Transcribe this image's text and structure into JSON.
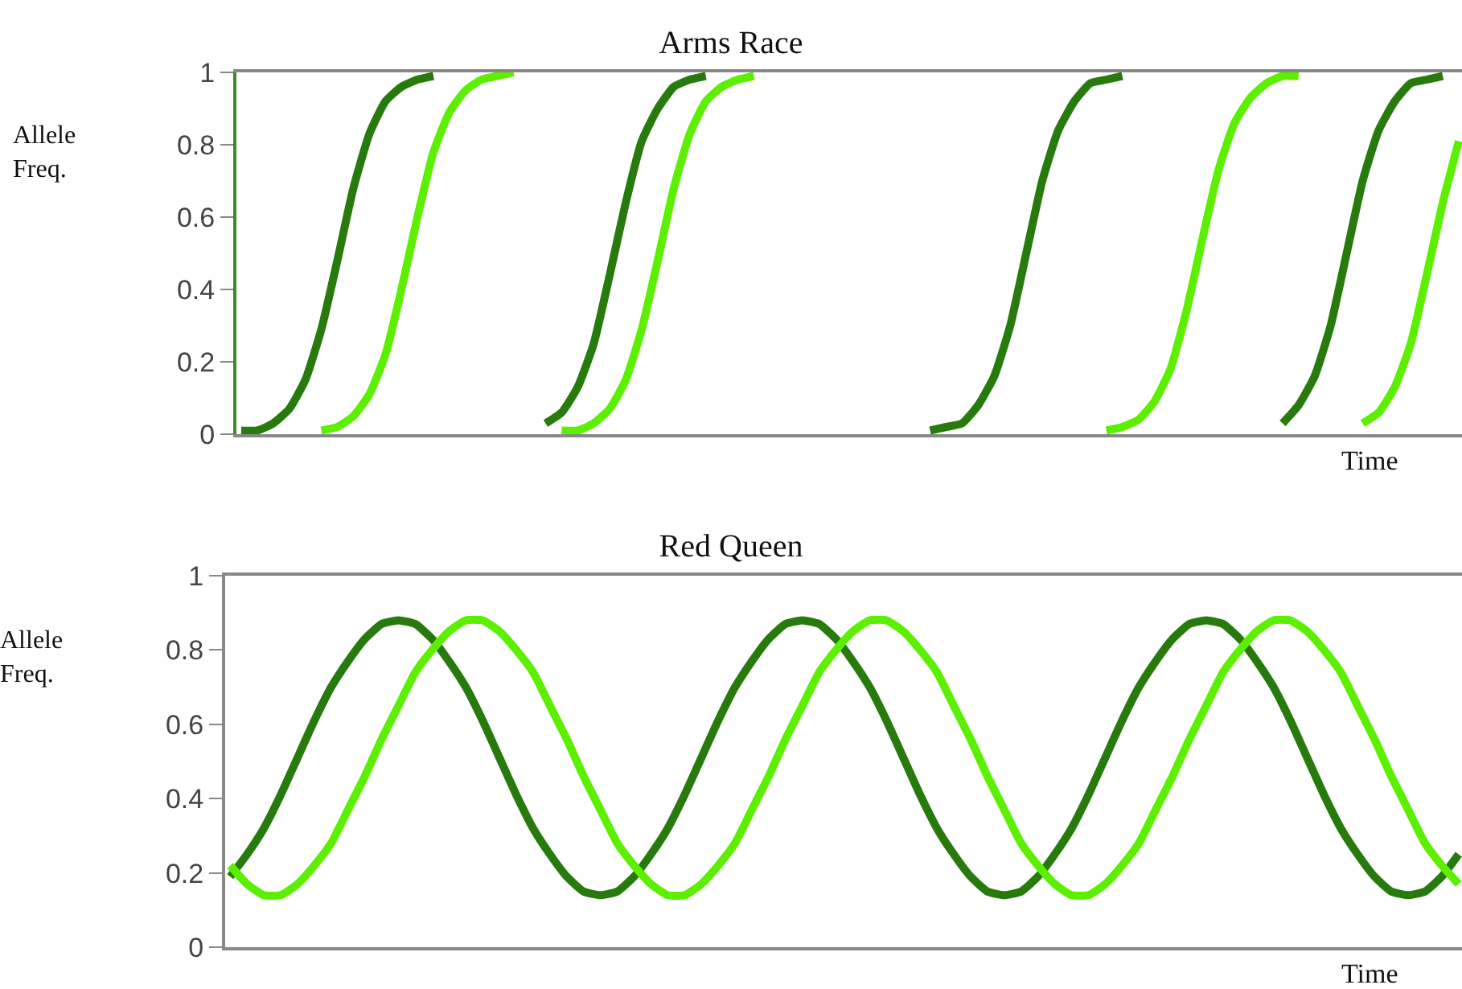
{
  "chart_data": [
    {
      "type": "line",
      "title": "Arms Race",
      "ylabel": "Allele\nFreq.",
      "xlabel": "Time",
      "ylim": [
        0,
        1
      ],
      "yticks": [
        0,
        0.2,
        0.4,
        0.6,
        0.8,
        1
      ],
      "grid": false,
      "marker": "none",
      "line_style": "solid",
      "categories": [
        null,
        null,
        null,
        null,
        null,
        null,
        null,
        null,
        null,
        null,
        null,
        null,
        null,
        null,
        null,
        null,
        null,
        null,
        null,
        null,
        null,
        null,
        null,
        null,
        null,
        null,
        null,
        null,
        null,
        null,
        null,
        null,
        null,
        null,
        null,
        null,
        null,
        null,
        null,
        null,
        null,
        null,
        null,
        null,
        null,
        null,
        null,
        null,
        null,
        null,
        null,
        null,
        null,
        null,
        null,
        null,
        null,
        null,
        null,
        null,
        null,
        null,
        null,
        null,
        null,
        null,
        null,
        null,
        null,
        null,
        null,
        null,
        null,
        null,
        null,
        null,
        null
      ],
      "series": [
        {
          "color": "#277a0c",
          "values": [
            0.01,
            0.01,
            0.03,
            0.07,
            0.15,
            0.29,
            0.48,
            0.68,
            0.83,
            0.92,
            0.96,
            0.98,
            0.99,
            null,
            null,
            null,
            null,
            null,
            null,
            0.03,
            0.06,
            0.13,
            0.25,
            0.44,
            0.64,
            0.81,
            0.9,
            0.96,
            0.98,
            0.99,
            null,
            null,
            null,
            null,
            null,
            null,
            null,
            null,
            null,
            null,
            null,
            null,
            null,
            0.01,
            0.02,
            0.03,
            0.08,
            0.16,
            0.3,
            0.5,
            0.7,
            0.84,
            0.92,
            0.97,
            0.98,
            0.99,
            null,
            null,
            null,
            null,
            null,
            null,
            null,
            null,
            null,
            0.03,
            0.08,
            0.16,
            0.3,
            0.5,
            0.7,
            0.84,
            0.92,
            0.97,
            0.98,
            0.99,
            null
          ]
        },
        {
          "color": "#5cf000",
          "values": [
            null,
            null,
            null,
            null,
            null,
            0.01,
            0.02,
            0.05,
            0.11,
            0.22,
            0.4,
            0.6,
            0.78,
            0.89,
            0.95,
            0.98,
            0.99,
            1,
            null,
            null,
            0.01,
            0.01,
            0.03,
            0.07,
            0.15,
            0.29,
            0.48,
            0.68,
            0.83,
            0.92,
            0.96,
            0.98,
            0.99,
            null,
            null,
            null,
            null,
            null,
            null,
            null,
            null,
            null,
            null,
            null,
            null,
            null,
            null,
            null,
            null,
            null,
            null,
            null,
            null,
            null,
            0.01,
            0.02,
            0.04,
            0.09,
            0.18,
            0.34,
            0.54,
            0.73,
            0.86,
            0.93,
            0.97,
            0.99,
            0.99,
            null,
            null,
            null,
            0.03,
            0.06,
            0.13,
            0.25,
            0.44,
            0.64,
            0.81
          ]
        }
      ]
    },
    {
      "type": "line",
      "title": "Red Queen",
      "ylabel": "Allele\nFreq.",
      "xlabel": "Time",
      "ylim": [
        0,
        1
      ],
      "yticks": [
        0,
        0.2,
        0.4,
        0.6,
        0.8,
        1
      ],
      "grid": false,
      "marker": "none",
      "line_style": "solid",
      "categories": [
        null,
        null,
        null,
        null,
        null,
        null,
        null,
        null,
        null,
        null,
        null,
        null,
        null,
        null,
        null,
        null,
        null,
        null,
        null,
        null,
        null,
        null,
        null,
        null,
        null,
        null,
        null,
        null,
        null,
        null,
        null,
        null,
        null,
        null,
        null,
        null,
        null,
        null,
        null,
        null,
        null,
        null,
        null,
        null,
        null,
        null,
        null,
        null,
        null,
        null,
        null,
        null,
        null,
        null,
        null,
        null,
        null,
        null,
        null,
        null,
        null,
        null,
        null,
        null,
        null,
        null,
        null,
        null,
        null,
        null,
        null,
        null,
        null,
        null
      ],
      "series": [
        {
          "color": "#277a0c",
          "values": [
            0.19,
            0.25,
            0.32,
            0.41,
            0.51,
            0.61,
            0.7,
            0.77,
            0.83,
            0.87,
            0.88,
            0.87,
            0.83,
            0.77,
            0.7,
            0.61,
            0.51,
            0.41,
            0.32,
            0.25,
            0.19,
            0.15,
            0.14,
            0.15,
            0.19,
            0.25,
            0.32,
            0.41,
            0.51,
            0.61,
            0.7,
            0.77,
            0.83,
            0.87,
            0.88,
            0.87,
            0.83,
            0.77,
            0.7,
            0.61,
            0.51,
            0.41,
            0.32,
            0.25,
            0.19,
            0.15,
            0.14,
            0.15,
            0.19,
            0.25,
            0.32,
            0.41,
            0.51,
            0.61,
            0.7,
            0.77,
            0.83,
            0.87,
            0.88,
            0.87,
            0.83,
            0.77,
            0.7,
            0.61,
            0.51,
            0.41,
            0.32,
            0.25,
            0.19,
            0.15,
            0.14,
            0.15,
            0.19,
            0.25
          ]
        },
        {
          "color": "#5cf000",
          "values": [
            0.22,
            0.17,
            0.14,
            0.14,
            0.17,
            0.22,
            0.28,
            0.37,
            0.46,
            0.56,
            0.65,
            0.74,
            0.8,
            0.85,
            0.88,
            0.88,
            0.85,
            0.8,
            0.74,
            0.65,
            0.56,
            0.46,
            0.37,
            0.28,
            0.22,
            0.17,
            0.14,
            0.14,
            0.17,
            0.22,
            0.28,
            0.37,
            0.46,
            0.56,
            0.65,
            0.74,
            0.8,
            0.85,
            0.88,
            0.88,
            0.85,
            0.8,
            0.74,
            0.65,
            0.56,
            0.46,
            0.37,
            0.28,
            0.22,
            0.17,
            0.14,
            0.14,
            0.17,
            0.22,
            0.28,
            0.37,
            0.46,
            0.56,
            0.65,
            0.74,
            0.8,
            0.85,
            0.88,
            0.88,
            0.85,
            0.8,
            0.74,
            0.65,
            0.56,
            0.46,
            0.37,
            0.28,
            0.22,
            0.17
          ]
        }
      ]
    }
  ]
}
